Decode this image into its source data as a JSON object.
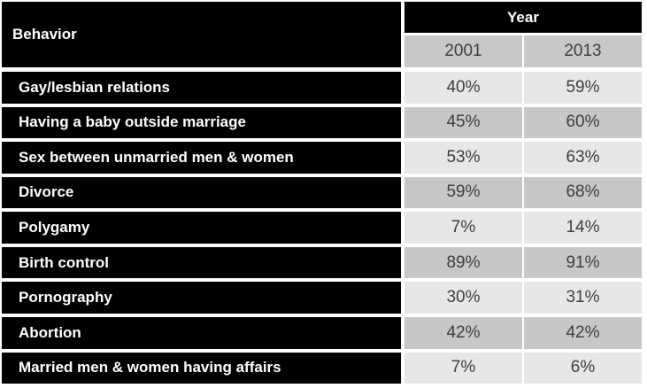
{
  "colors": {
    "header_bg": "#000000",
    "header_text": "#ffffff",
    "year_cell_bg": "#c9c8c8",
    "cell_light": "#e8e7e7",
    "cell_dark": "#c8c6c6",
    "value_text": "#3e3e3e",
    "page_bg": "#ffffff"
  },
  "table": {
    "behavior_header": "Behavior",
    "year_header": "Year",
    "year_columns": [
      "2001",
      "2013"
    ],
    "rows": [
      {
        "label": "Gay/lesbian relations",
        "values": [
          "40%",
          "59%"
        ]
      },
      {
        "label": "Having a baby outside marriage",
        "values": [
          "45%",
          "60%"
        ]
      },
      {
        "label": "Sex between unmarried men & women",
        "values": [
          "53%",
          "63%"
        ]
      },
      {
        "label": "Divorce",
        "values": [
          "59%",
          "68%"
        ]
      },
      {
        "label": "Polygamy",
        "values": [
          "7%",
          "14%"
        ]
      },
      {
        "label": "Birth control",
        "values": [
          "89%",
          "91%"
        ]
      },
      {
        "label": "Pornography",
        "values": [
          "30%",
          "31%"
        ]
      },
      {
        "label": "Abortion",
        "values": [
          "42%",
          "42%"
        ]
      },
      {
        "label": "Married men & women having affairs",
        "values": [
          "7%",
          "6%"
        ]
      }
    ]
  },
  "chart_data": {
    "type": "table",
    "row_header": "Behavior",
    "column_group_header": "Year",
    "columns": [
      "2001",
      "2013"
    ],
    "rows": [
      {
        "behavior": "Gay/lesbian relations",
        "values_pct": [
          40,
          59
        ]
      },
      {
        "behavior": "Having a baby outside marriage",
        "values_pct": [
          45,
          60
        ]
      },
      {
        "behavior": "Sex between unmarried men & women",
        "values_pct": [
          53,
          63
        ]
      },
      {
        "behavior": "Divorce",
        "values_pct": [
          59,
          68
        ]
      },
      {
        "behavior": "Polygamy",
        "values_pct": [
          7,
          14
        ]
      },
      {
        "behavior": "Birth control",
        "values_pct": [
          89,
          91
        ]
      },
      {
        "behavior": "Pornography",
        "values_pct": [
          30,
          31
        ]
      },
      {
        "behavior": "Abortion",
        "values_pct": [
          42,
          42
        ]
      },
      {
        "behavior": "Married men & women having affairs",
        "values_pct": [
          7,
          6
        ]
      }
    ]
  }
}
